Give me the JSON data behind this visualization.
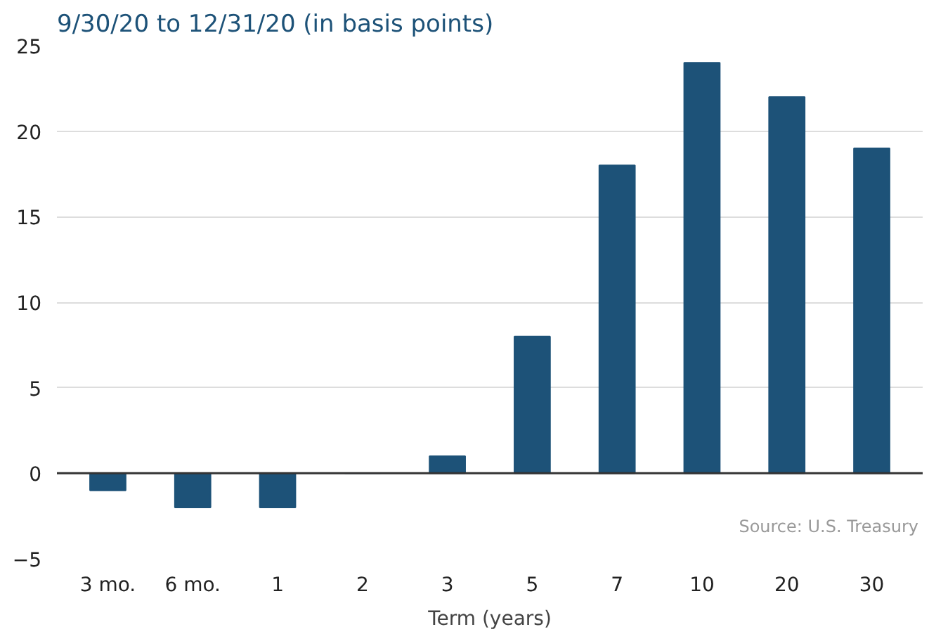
{
  "chart_data": {
    "type": "bar",
    "title": "9/30/20 to 12/31/20 (in basis points)",
    "xlabel": "Term (years)",
    "categories": [
      "3 mo.",
      "6 mo.",
      "1",
      "2",
      "3",
      "5",
      "7",
      "10",
      "20",
      "30"
    ],
    "values": [
      -1,
      -2,
      -2,
      0,
      1,
      8,
      18,
      24,
      22,
      19
    ],
    "color": "#1d5278",
    "ylim": [
      -5,
      25
    ],
    "yticks": [
      -5,
      0,
      5,
      10,
      15,
      20,
      25
    ],
    "grid": "y",
    "ref_lines": [
      {
        "axis": "y",
        "value": 0,
        "color": "#333333"
      }
    ],
    "annotations": [
      "Source: U.S. Treasury"
    ]
  }
}
